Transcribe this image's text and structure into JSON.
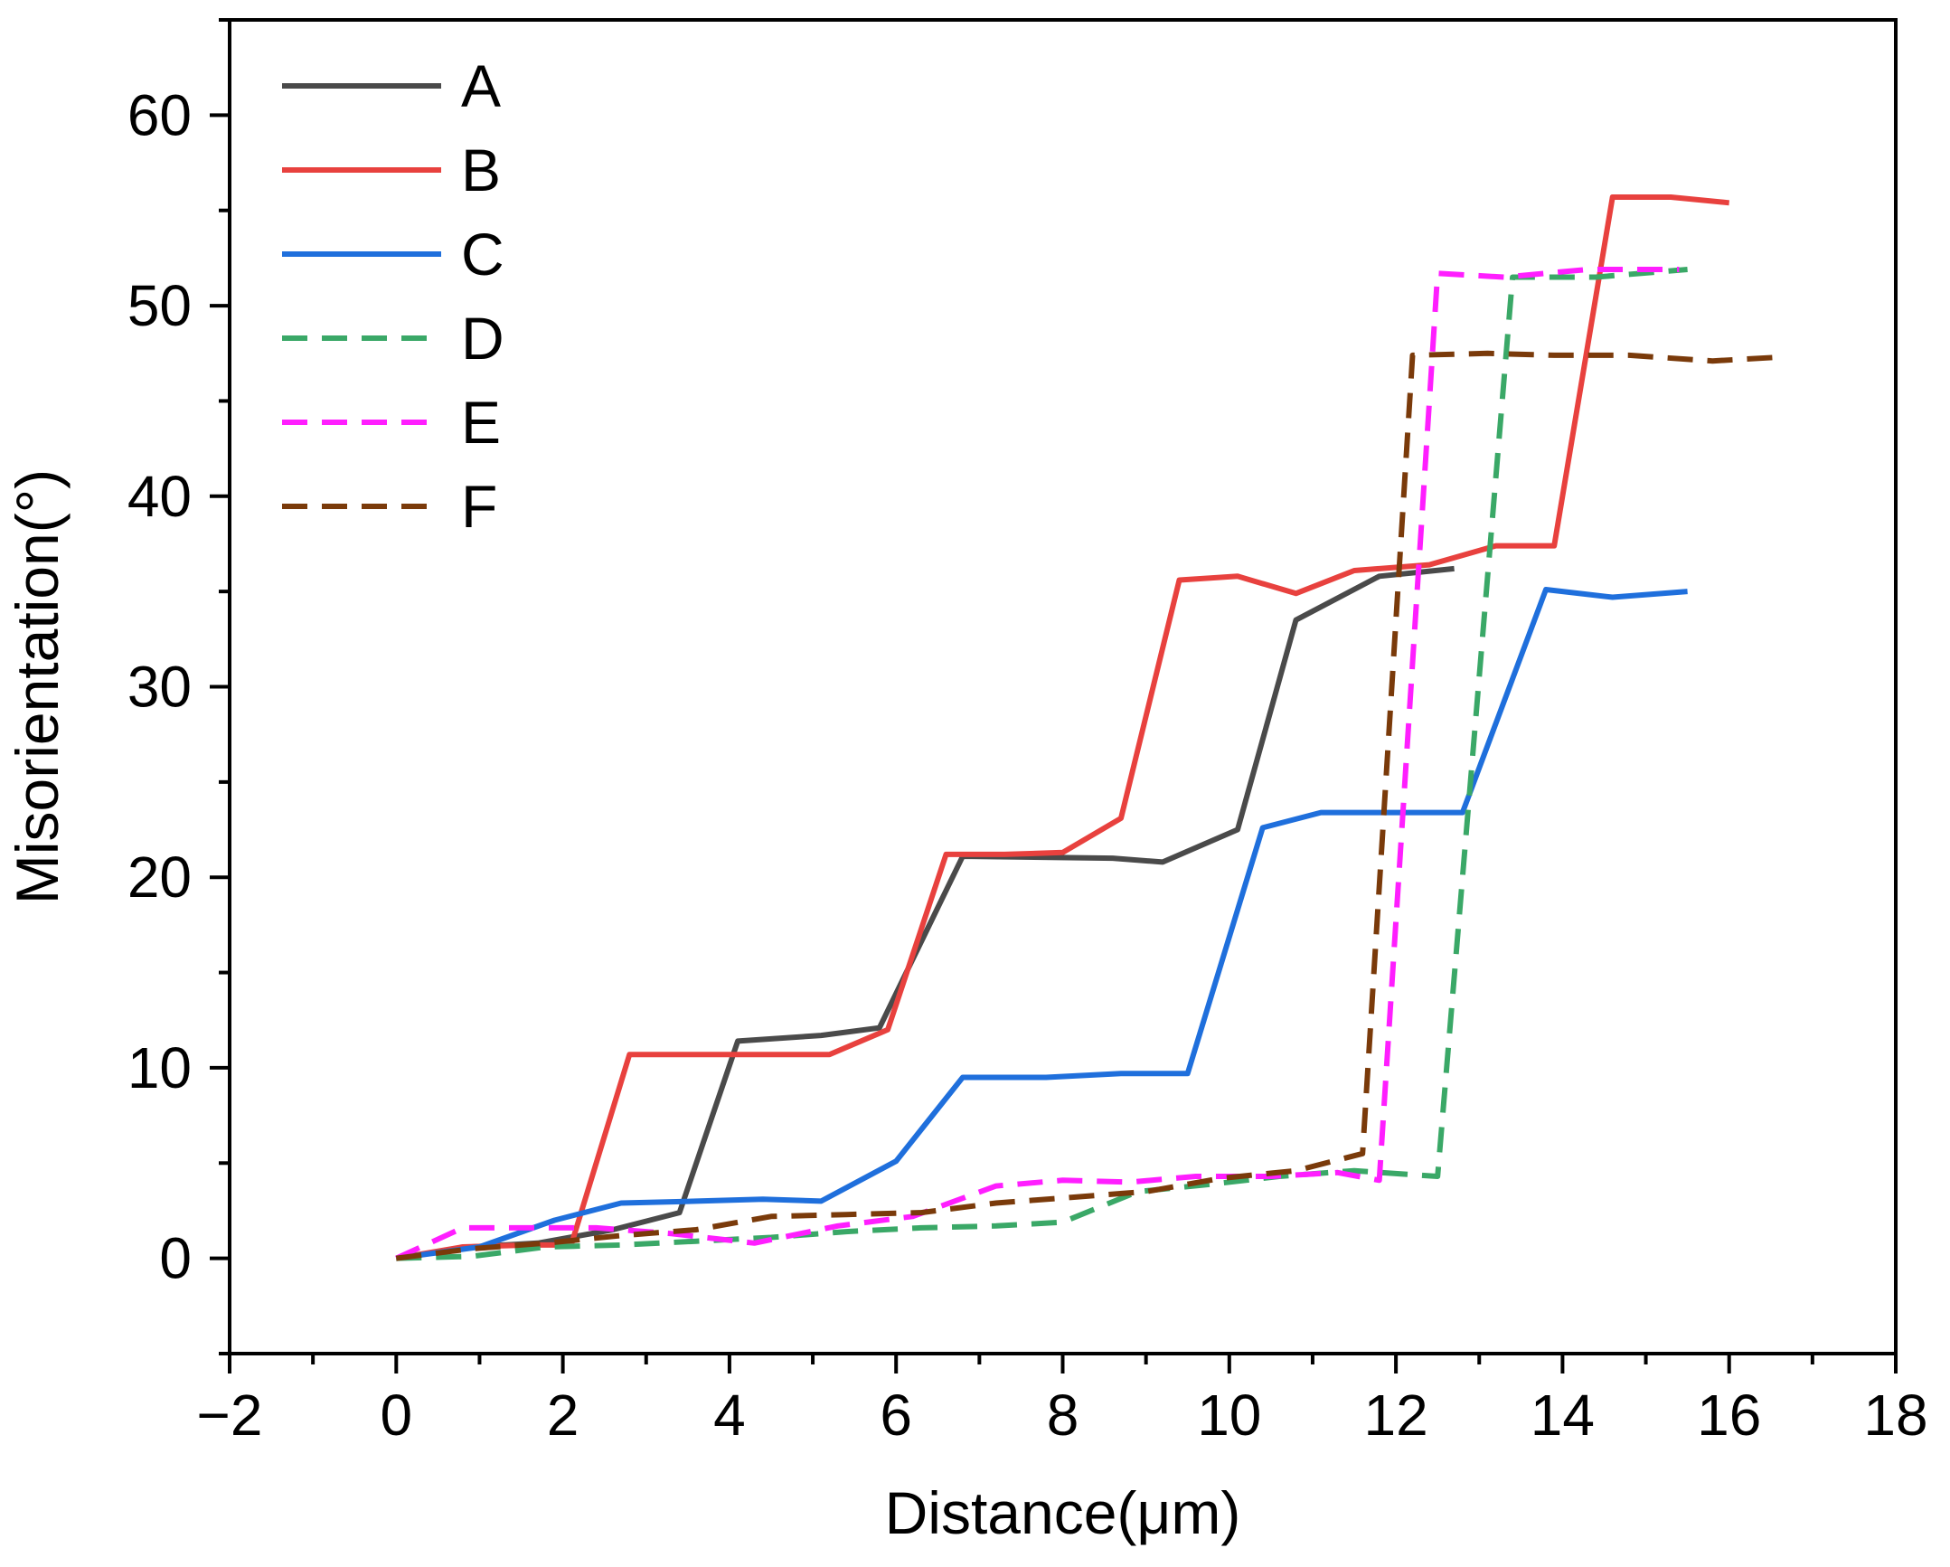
{
  "chart_data": {
    "type": "line",
    "title": "",
    "xlabel": "Distance(μm)",
    "ylabel": "Misorientation(°)",
    "xlim": [
      -2,
      18
    ],
    "ylim": [
      -5,
      65
    ],
    "xticks": [
      -2,
      0,
      2,
      4,
      6,
      8,
      10,
      12,
      14,
      16,
      18
    ],
    "yticks": [
      0,
      10,
      20,
      30,
      40,
      50,
      60
    ],
    "xtick_labels": [
      "−2",
      "0",
      "2",
      "4",
      "6",
      "8",
      "10",
      "12",
      "14",
      "16",
      "18"
    ],
    "ytick_labels": [
      "0",
      "10",
      "20",
      "30",
      "40",
      "50",
      "60"
    ],
    "grid": false,
    "legend_position": "top-left",
    "series": [
      {
        "name": "A",
        "color": "#4a4a4a",
        "style": "solid",
        "x": [
          0,
          0.9,
          1.7,
          2.6,
          3.4,
          4.1,
          5.1,
          5.8,
          6.8,
          8.6,
          9.2,
          10.1,
          10.8,
          11.8,
          12.7
        ],
        "y": [
          0,
          0.6,
          0.8,
          1.5,
          2.4,
          11.4,
          11.7,
          12.1,
          21.1,
          21.0,
          20.8,
          22.5,
          33.5,
          35.8,
          36.2
        ]
      },
      {
        "name": "B",
        "color": "#e8413e",
        "style": "solid",
        "x": [
          0,
          0.8,
          1.6,
          2.1,
          2.8,
          3.7,
          4.4,
          5.2,
          5.9,
          6.6,
          7.3,
          8.0,
          8.7,
          9.4,
          10.1,
          10.8,
          11.5,
          12.4,
          13.2,
          13.9,
          14.6,
          15.3,
          16.0
        ],
        "y": [
          0,
          0.6,
          0.7,
          0.7,
          10.7,
          10.7,
          10.7,
          10.7,
          12.0,
          21.2,
          21.2,
          21.3,
          23.1,
          35.6,
          35.8,
          34.9,
          36.1,
          36.4,
          37.4,
          37.4,
          55.7,
          55.7,
          55.4
        ]
      },
      {
        "name": "C",
        "color": "#1f6fdc",
        "style": "solid",
        "x": [
          0,
          1.0,
          1.9,
          2.7,
          3.6,
          4.4,
          5.1,
          6.0,
          6.8,
          7.8,
          8.7,
          9.5,
          10.4,
          11.1,
          11.9,
          12.8,
          13.8,
          14.6,
          15.5
        ],
        "y": [
          0,
          0.6,
          2.0,
          2.9,
          3.0,
          3.1,
          3.0,
          5.1,
          9.5,
          9.5,
          9.7,
          9.7,
          22.6,
          23.4,
          23.4,
          23.4,
          35.1,
          34.7,
          35.0
        ]
      },
      {
        "name": "D",
        "color": "#3aa867",
        "style": "dashed",
        "x": [
          0,
          0.9,
          1.8,
          2.7,
          3.6,
          4.5,
          5.4,
          6.3,
          7.2,
          8.0,
          8.9,
          9.8,
          10.6,
          11.5,
          12.5,
          13.4,
          14.4,
          15.5
        ],
        "y": [
          0,
          0.1,
          0.6,
          0.7,
          0.9,
          1.1,
          1.4,
          1.6,
          1.7,
          1.9,
          3.5,
          3.9,
          4.3,
          4.6,
          4.3,
          51.5,
          51.5,
          51.9
        ]
      },
      {
        "name": "E",
        "color": "#ff1eff",
        "style": "dashed",
        "x": [
          0,
          0.8,
          1.6,
          2.4,
          3.3,
          4.3,
          5.3,
          6.2,
          7.2,
          8.0,
          8.8,
          9.6,
          10.5,
          11.3,
          11.8,
          12.5,
          13.3,
          14.3,
          15.4
        ],
        "y": [
          0,
          1.6,
          1.6,
          1.6,
          1.3,
          0.8,
          1.7,
          2.2,
          3.8,
          4.1,
          4.0,
          4.3,
          4.3,
          4.5,
          4.1,
          51.7,
          51.5,
          51.9,
          51.9
        ]
      },
      {
        "name": "F",
        "color": "#7a3a0a",
        "style": "dashed",
        "x": [
          0,
          0.9,
          1.8,
          2.7,
          3.6,
          4.5,
          5.4,
          6.3,
          7.2,
          8.1,
          9.0,
          9.9,
          10.8,
          11.6,
          12.2,
          13.1,
          13.9,
          14.8,
          15.8,
          16.6
        ],
        "y": [
          0,
          0.5,
          0.8,
          1.2,
          1.5,
          2.2,
          2.3,
          2.4,
          2.9,
          3.2,
          3.5,
          4.2,
          4.6,
          5.5,
          47.4,
          47.5,
          47.4,
          47.4,
          47.1,
          47.3
        ]
      }
    ]
  }
}
